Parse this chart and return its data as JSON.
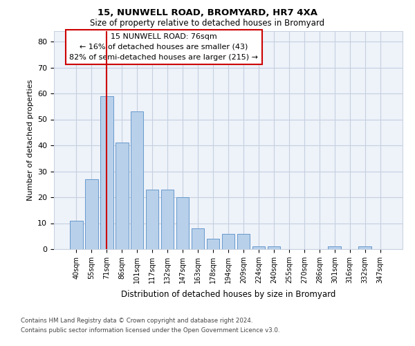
{
  "title1": "15, NUNWELL ROAD, BROMYARD, HR7 4XA",
  "title2": "Size of property relative to detached houses in Bromyard",
  "xlabel": "Distribution of detached houses by size in Bromyard",
  "ylabel": "Number of detached properties",
  "categories": [
    "40sqm",
    "55sqm",
    "71sqm",
    "86sqm",
    "101sqm",
    "117sqm",
    "132sqm",
    "147sqm",
    "163sqm",
    "178sqm",
    "194sqm",
    "209sqm",
    "224sqm",
    "240sqm",
    "255sqm",
    "270sqm",
    "286sqm",
    "301sqm",
    "316sqm",
    "332sqm",
    "347sqm"
  ],
  "values": [
    11,
    27,
    59,
    41,
    53,
    23,
    23,
    20,
    8,
    4,
    6,
    6,
    1,
    1,
    0,
    0,
    0,
    1,
    0,
    1,
    0
  ],
  "bar_color": "#b8d0ea",
  "bar_edge_color": "#6699cc",
  "bar_width": 0.85,
  "vline_x": 2.0,
  "vline_color": "#cc0000",
  "annotation_text": "15 NUNWELL ROAD: 76sqm\n← 16% of detached houses are smaller (43)\n82% of semi-detached houses are larger (215) →",
  "box_color": "#cc0000",
  "ylim": [
    0,
    84
  ],
  "yticks": [
    0,
    10,
    20,
    30,
    40,
    50,
    60,
    70,
    80
  ],
  "footnote1": "Contains HM Land Registry data © Crown copyright and database right 2024.",
  "footnote2": "Contains public sector information licensed under the Open Government Licence v3.0.",
  "bg_color": "#eef2f9",
  "grid_color": "#c5cfe0"
}
